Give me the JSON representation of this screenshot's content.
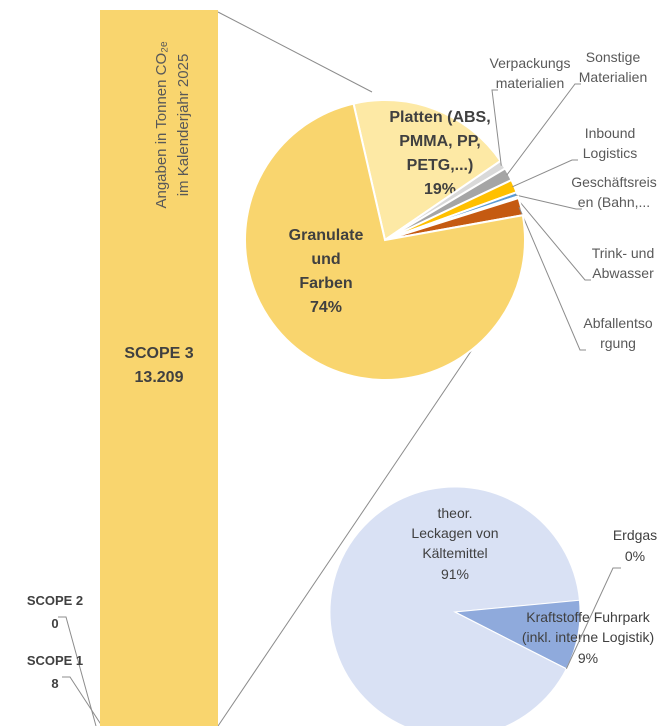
{
  "chart_data": [
    {
      "type": "bar",
      "y_label": "Angaben in Tonnen CO₂ₑ\nim Kalenderjahr 2025",
      "categories": [
        "SCOPE 3",
        "SCOPE 2",
        "SCOPE 1"
      ],
      "values": [
        13209,
        0,
        8
      ],
      "value_labels": [
        "13.209",
        "0",
        "8"
      ],
      "color": "#f9d56e"
    },
    {
      "type": "pie",
      "labels": [
        "Platten (ABS,\nPMMA, PP,\nPETG,...)",
        "Verpackungs\nmaterialien",
        "Sonstige\nMaterialien",
        "Inbound\nLogistics",
        "Geschäftsreis\nen (Bahn,...",
        "Trink- und\nAbwasser",
        "Abfallentso\nrgung",
        "Granulate\nund\nFarben"
      ],
      "values": [
        19,
        1,
        1.5,
        1.5,
        0.5,
        0.2,
        2,
        74
      ],
      "value_labels": [
        "19%",
        null,
        null,
        null,
        null,
        null,
        null,
        "74%"
      ],
      "colors": [
        "#fde9a5",
        "#d9d9d9",
        "#a5a5a5",
        "#ffc000",
        "#5b9bd5",
        "#70ad47",
        "#c55a11",
        "#f9d56e"
      ]
    },
    {
      "type": "pie",
      "labels": [
        "theor.\nLeckagen von\nKältemittel",
        "Kraftstoffe Fuhrpark\n(inkl. interne Logistik)",
        "Erdgas"
      ],
      "values": [
        91,
        9,
        0
      ],
      "value_labels": [
        "91%",
        "9%",
        "0%"
      ],
      "colors": [
        "#d9e1f4",
        "#8faadc",
        "#4472c4"
      ]
    }
  ]
}
